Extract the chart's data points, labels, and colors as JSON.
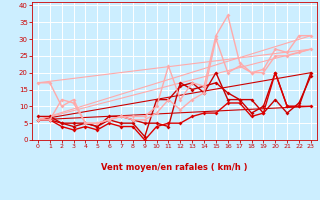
{
  "xlabel": "Vent moyen/en rafales ( km/h )",
  "background_color": "#cceeff",
  "grid_color": "#ffffff",
  "xlim": [
    -0.5,
    23.5
  ],
  "ylim": [
    0,
    41
  ],
  "yticks": [
    0,
    5,
    10,
    15,
    20,
    25,
    30,
    35,
    40
  ],
  "xticks": [
    0,
    1,
    2,
    3,
    4,
    5,
    6,
    7,
    8,
    9,
    10,
    11,
    12,
    13,
    14,
    15,
    16,
    17,
    18,
    19,
    20,
    21,
    22,
    23
  ],
  "wind_arrows": [
    "→",
    "↓",
    "↖",
    "↗",
    "↑",
    "←",
    "↑",
    "←",
    "↖",
    "↑",
    "↑",
    "↑",
    "→",
    "↘",
    "↘",
    "↘",
    "↘",
    "↘",
    "↓",
    "↓",
    "↘",
    "↓",
    "↓",
    "↓"
  ],
  "series": [
    {
      "x": [
        0,
        1,
        2,
        3,
        4,
        5,
        6,
        7,
        8,
        9,
        10,
        11,
        12,
        13,
        14,
        15,
        16,
        17,
        18,
        19,
        20,
        21,
        22,
        23
      ],
      "y": [
        7,
        7,
        5,
        5,
        5,
        4,
        6,
        5,
        5,
        1,
        12,
        12,
        16,
        17,
        14,
        20,
        12,
        12,
        8,
        10,
        20,
        10,
        10,
        20
      ],
      "color": "#cc0000",
      "lw": 1.0,
      "marker": "D",
      "ms": 2.0
    },
    {
      "x": [
        0,
        1,
        2,
        3,
        4,
        5,
        6,
        7,
        8,
        9,
        10,
        11,
        12,
        13,
        14,
        15,
        16,
        17,
        18,
        19,
        20,
        21,
        22,
        23
      ],
      "y": [
        6,
        6,
        5,
        4,
        5,
        4,
        7,
        7,
        6,
        5,
        5,
        4,
        17,
        15,
        16,
        17,
        14,
        12,
        12,
        8,
        12,
        8,
        11,
        19
      ],
      "color": "#cc0000",
      "lw": 1.0,
      "marker": "D",
      "ms": 2.0
    },
    {
      "x": [
        0,
        1,
        2,
        3,
        4,
        5,
        6,
        7,
        8,
        9,
        10,
        11,
        12,
        13,
        14,
        15,
        16,
        17,
        18,
        19,
        20,
        21,
        22,
        23
      ],
      "y": [
        6,
        6,
        4,
        3,
        4,
        3,
        5,
        4,
        4,
        0,
        4,
        5,
        5,
        7,
        8,
        8,
        11,
        11,
        7,
        8,
        20,
        10,
        10,
        10
      ],
      "color": "#dd0000",
      "lw": 1.0,
      "marker": "D",
      "ms": 2.0
    },
    {
      "x": [
        0,
        23
      ],
      "y": [
        6,
        20
      ],
      "color": "#cc0000",
      "lw": 0.8,
      "marker": null,
      "ms": 0
    },
    {
      "x": [
        0,
        23
      ],
      "y": [
        6,
        10
      ],
      "color": "#cc0000",
      "lw": 0.8,
      "marker": null,
      "ms": 0
    },
    {
      "x": [
        0,
        1,
        2,
        3,
        4,
        5,
        6,
        7,
        8,
        9,
        10,
        11,
        12,
        13,
        14,
        15,
        16,
        17,
        18,
        19,
        20,
        21,
        22,
        23
      ],
      "y": [
        17,
        17,
        10,
        12,
        5,
        5,
        6,
        7,
        7,
        7,
        10,
        22,
        12,
        17,
        16,
        31,
        37,
        23,
        20,
        21,
        27,
        26,
        31,
        31
      ],
      "color": "#ffaaaa",
      "lw": 1.0,
      "marker": "D",
      "ms": 2.0
    },
    {
      "x": [
        0,
        1,
        2,
        3,
        4,
        5,
        6,
        7,
        8,
        9,
        10,
        11,
        12,
        13,
        14,
        15,
        16,
        17,
        18,
        19,
        20,
        21,
        22,
        23
      ],
      "y": [
        6,
        6,
        12,
        11,
        5,
        5,
        6,
        7,
        6,
        6,
        8,
        12,
        9,
        12,
        14,
        30,
        20,
        22,
        20,
        20,
        25,
        25,
        26,
        27
      ],
      "color": "#ffaaaa",
      "lw": 1.0,
      "marker": "D",
      "ms": 2.0
    },
    {
      "x": [
        0,
        23
      ],
      "y": [
        17,
        27
      ],
      "color": "#ffaaaa",
      "lw": 0.8,
      "marker": null,
      "ms": 0
    },
    {
      "x": [
        0,
        23
      ],
      "y": [
        6,
        31
      ],
      "color": "#ffaaaa",
      "lw": 0.8,
      "marker": null,
      "ms": 0
    },
    {
      "x": [
        0,
        23
      ],
      "y": [
        6,
        27
      ],
      "color": "#ffaaaa",
      "lw": 0.8,
      "marker": null,
      "ms": 0
    }
  ]
}
